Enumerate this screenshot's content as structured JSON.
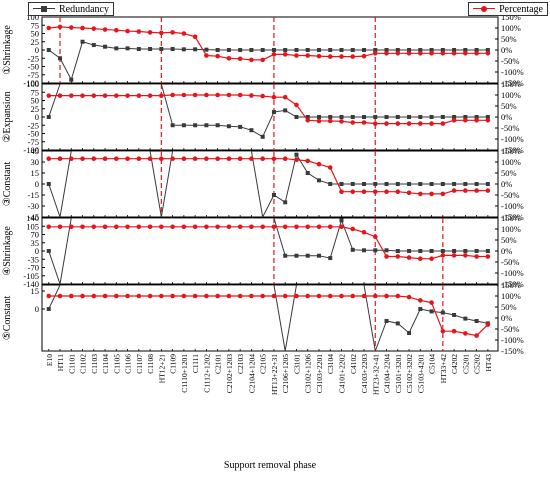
{
  "chart_data": {
    "type": "line",
    "xlabel": "Support removal phase",
    "colors": {
      "redundancy": "#3a3a3a",
      "percentage": "#e8141b",
      "guide": "#e8141b"
    },
    "legend": {
      "redundancy": {
        "name": "Redundancy",
        "marker": "square",
        "placement": "top-left"
      },
      "percentage": {
        "name": "Percentage",
        "marker": "circle",
        "placement": "top-right"
      }
    },
    "categories": [
      "E10",
      "HT11",
      "C1101",
      "C1102",
      "C1103",
      "C1104",
      "C1105",
      "C1106",
      "C1107",
      "C1108",
      "HT12+21",
      "C1109",
      "C1110+1201",
      "C1111",
      "C1112+1202",
      "C2101",
      "C2102+1203",
      "C2103",
      "C2104+1204",
      "C2105",
      "HT13+22+31",
      "C2106+1205",
      "C3101",
      "C3102+1206",
      "C3103+2201",
      "C3104",
      "C4101+2202",
      "C4102",
      "C4103+2203",
      "HT23+32+41",
      "C4104+2204",
      "C5101+3201",
      "C5102+3202",
      "C5103+4201",
      "C5104",
      "HT33+42",
      "C4202",
      "C5201",
      "C5202",
      "HT43"
    ],
    "tick_labels": [
      "E10",
      "HT11",
      "C1101",
      "C1102",
      "C1103",
      "C1104",
      "C1105",
      "C1106",
      "C1107",
      "C1108",
      "HT12+21",
      "C1109",
      "C1110+1201",
      "C1111",
      "C1112+1202",
      "C2101",
      "C2102+1203",
      "C2103",
      "C2104+1204",
      "C2105",
      "HT13+22+31",
      "C2106+1205",
      "C3101",
      "C3102+1206",
      "C3103+2201",
      "C3104",
      "C4101+2202",
      "C4102",
      "C4103+2203",
      "HT23+32+41",
      "C4104+2204",
      "C5101+3201",
      "C5102+3202",
      "C5103+4201",
      "C5104",
      "HT33+42",
      "C4202",
      "C5201",
      "C5202",
      "HT43"
    ],
    "panels": [
      {
        "label": "①Shrinkage",
        "left_ticks": [
          100,
          75,
          50,
          25,
          0,
          -25,
          -50,
          -75,
          -100
        ],
        "ylim": [
          -100,
          100
        ],
        "right_ticks": [
          "150%",
          "100%",
          "50%",
          "0%",
          "-50%",
          "-100%",
          "-150%"
        ],
        "y2lim": [
          -150,
          150
        ],
        "guides": [
          1,
          10,
          20,
          29
        ],
        "redundancy": [
          0,
          -25,
          -90,
          25,
          15,
          10,
          5,
          5,
          3,
          3,
          3,
          3,
          2,
          2,
          1,
          0,
          0,
          0,
          0,
          0,
          0,
          0,
          0,
          0,
          0,
          0,
          0,
          0,
          0,
          0,
          0,
          0,
          0,
          0,
          0,
          0,
          0,
          0,
          0,
          0
        ],
        "percentage": [
          100,
          105,
          102,
          100,
          97,
          93,
          90,
          86,
          84,
          80,
          78,
          80,
          75,
          60,
          -25,
          -28,
          -38,
          -40,
          -45,
          -45,
          -20,
          -20,
          -25,
          -25,
          -28,
          -30,
          -30,
          -30,
          -28,
          -15,
          -15,
          -15,
          -15,
          -15,
          -15,
          -15,
          -15,
          -15,
          -15,
          -15
        ]
      },
      {
        "label": "②Expansion",
        "left_ticks": [
          100,
          75,
          50,
          25,
          0,
          -25,
          -50,
          -75,
          -100
        ],
        "ylim": [
          -100,
          100
        ],
        "right_ticks": [
          "150%",
          "100%",
          "50%",
          "0%",
          "-50%",
          "-100%",
          "-150%"
        ],
        "y2lim": [
          -150,
          150
        ],
        "guides": [
          10,
          20,
          29
        ],
        "redundancy": [
          0,
          100,
          100,
          100,
          100,
          100,
          100,
          100,
          100,
          100,
          100,
          -25,
          -25,
          -25,
          -25,
          -25,
          -28,
          -30,
          -40,
          -60,
          15,
          20,
          0,
          0,
          0,
          0,
          0,
          0,
          0,
          0,
          0,
          0,
          0,
          0,
          0,
          0,
          0,
          0,
          0,
          0
        ],
        "percentage": [
          97,
          97,
          97,
          97,
          97,
          97,
          97,
          97,
          97,
          97,
          97,
          100,
          100,
          100,
          100,
          100,
          100,
          100,
          98,
          95,
          90,
          90,
          55,
          -15,
          -18,
          -18,
          -20,
          -25,
          -25,
          -30,
          -30,
          -30,
          -30,
          -30,
          -30,
          -30,
          -15,
          -15,
          -15,
          -15
        ]
      },
      {
        "label": "③Constant",
        "left_ticks": [
          45,
          30,
          15,
          0,
          -15,
          -30,
          -45
        ],
        "ylim": [
          -45,
          45
        ],
        "right_ticks": [
          "150%",
          "100%",
          "50%",
          "0%",
          "-50%",
          "-100%",
          "-150%"
        ],
        "y2lim": [
          -150,
          150
        ],
        "guides": [
          10,
          20,
          29
        ],
        "redundancy": [
          0,
          -45,
          45,
          45,
          45,
          45,
          45,
          45,
          45,
          45,
          -45,
          45,
          45,
          45,
          45,
          45,
          45,
          45,
          45,
          -45,
          -15,
          -25,
          40,
          15,
          5,
          0,
          0,
          0,
          0,
          0,
          0,
          0,
          0,
          0,
          0,
          0,
          0,
          0,
          0,
          0
        ],
        "percentage": [
          115,
          115,
          115,
          115,
          115,
          115,
          115,
          115,
          115,
          115,
          115,
          115,
          115,
          115,
          115,
          115,
          115,
          115,
          115,
          115,
          115,
          115,
          110,
          105,
          90,
          75,
          -35,
          -35,
          -35,
          -35,
          -35,
          -35,
          -40,
          -45,
          -45,
          -45,
          -30,
          -30,
          -30,
          -30
        ]
      },
      {
        "label": "④Shrinkage",
        "left_ticks": [
          140,
          105,
          70,
          35,
          0,
          -35,
          -70,
          -105,
          -140
        ],
        "ylim": [
          -140,
          140
        ],
        "right_ticks": [
          "150%",
          "100%",
          "50%",
          "0%",
          "-50%",
          "-100%",
          "-150%"
        ],
        "y2lim": [
          -150,
          150
        ],
        "guides": [
          20,
          29,
          35
        ],
        "redundancy": [
          0,
          -140,
          140,
          140,
          140,
          140,
          140,
          140,
          140,
          140,
          140,
          140,
          140,
          140,
          140,
          140,
          140,
          140,
          140,
          140,
          140,
          -20,
          -20,
          -20,
          -20,
          -30,
          130,
          5,
          3,
          3,
          3,
          0,
          0,
          0,
          0,
          0,
          0,
          0,
          0,
          0
        ],
        "percentage": [
          110,
          110,
          110,
          110,
          110,
          110,
          110,
          110,
          110,
          110,
          110,
          110,
          110,
          110,
          110,
          110,
          110,
          110,
          110,
          110,
          110,
          110,
          110,
          110,
          110,
          110,
          110,
          100,
          85,
          65,
          -25,
          -25,
          -30,
          -35,
          -35,
          -20,
          -20,
          -20,
          -25,
          -25
        ]
      },
      {
        "label": "⑤Constant",
        "left_ticks": [
          15,
          0
        ],
        "ylim": [
          -35,
          20
        ],
        "right_ticks": [
          "150%",
          "100%",
          "50%",
          "0%",
          "-50%",
          "-100%",
          "-150%"
        ],
        "y2lim": [
          -150,
          150
        ],
        "guides": [
          29,
          35
        ],
        "redundancy": [
          0,
          20,
          20,
          20,
          20,
          20,
          20,
          20,
          20,
          20,
          20,
          20,
          20,
          20,
          20,
          20,
          20,
          20,
          20,
          20,
          20,
          -35,
          20,
          20,
          20,
          20,
          20,
          20,
          20,
          -35,
          -10,
          -12,
          -20,
          0,
          -2,
          -3,
          -5,
          -8,
          -10,
          -12
        ],
        "percentage": [
          100,
          100,
          100,
          100,
          100,
          100,
          100,
          100,
          100,
          100,
          100,
          100,
          100,
          100,
          100,
          100,
          100,
          100,
          100,
          100,
          100,
          100,
          100,
          100,
          100,
          100,
          100,
          100,
          100,
          100,
          100,
          100,
          95,
          80,
          70,
          -60,
          -60,
          -70,
          -80,
          -30
        ]
      }
    ]
  }
}
